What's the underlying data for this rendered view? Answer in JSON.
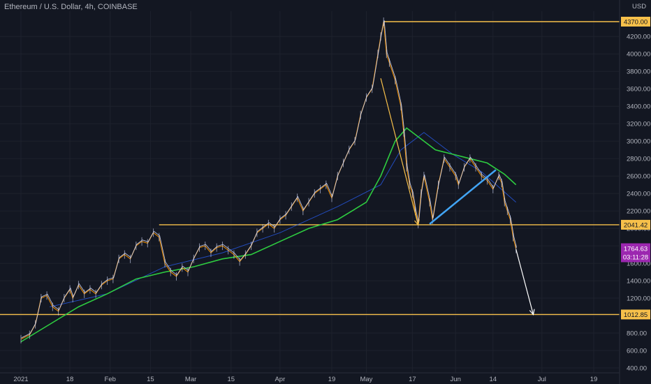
{
  "header": {
    "title": "Ethereum / U.S. Dollar, 4h, COINBASE",
    "currency": "USD"
  },
  "chart_data": {
    "type": "line",
    "title": "Ethereum / U.S. Dollar, 4h, COINBASE",
    "y_unit": "USD",
    "ylim": [
      400,
      4500
    ],
    "y_ticks": [
      400,
      600,
      800,
      1000,
      1200,
      1400,
      1600,
      1800,
      2000,
      2200,
      2400,
      2600,
      2800,
      3000,
      3200,
      3400,
      3600,
      3800,
      4000,
      4200
    ],
    "y_tick_labels": [
      "400.00",
      "600.00",
      "800.00",
      "1000.00",
      "1200.00",
      "1400.00",
      "1600.00",
      "1800.00",
      "2000.00",
      "2200.00",
      "2400.00",
      "2600.00",
      "2800.00",
      "3000.00",
      "3200.00",
      "3400.00",
      "3600.00",
      "3800.00",
      "4000.00",
      "4200.00"
    ],
    "x_ticks": [
      "2021",
      "18",
      "Feb",
      "15",
      "Mar",
      "15",
      "Apr",
      "19",
      "May",
      "17",
      "Jun",
      "14",
      "Jul",
      "19"
    ],
    "x_tick_days": [
      0,
      17,
      31,
      45,
      59,
      73,
      90,
      108,
      120,
      136,
      151,
      164,
      181,
      199
    ],
    "price_points": [
      [
        0,
        730
      ],
      [
        3,
        780
      ],
      [
        5,
        900
      ],
      [
        7,
        1200
      ],
      [
        9,
        1230
      ],
      [
        11,
        1100
      ],
      [
        13,
        1050
      ],
      [
        15,
        1200
      ],
      [
        17,
        1300
      ],
      [
        18,
        1200
      ],
      [
        20,
        1350
      ],
      [
        22,
        1250
      ],
      [
        24,
        1300
      ],
      [
        26,
        1250
      ],
      [
        28,
        1350
      ],
      [
        30,
        1400
      ],
      [
        32,
        1420
      ],
      [
        34,
        1650
      ],
      [
        36,
        1700
      ],
      [
        38,
        1650
      ],
      [
        40,
        1800
      ],
      [
        42,
        1850
      ],
      [
        44,
        1830
      ],
      [
        46,
        1950
      ],
      [
        48,
        1900
      ],
      [
        50,
        1600
      ],
      [
        52,
        1500
      ],
      [
        54,
        1450
      ],
      [
        56,
        1550
      ],
      [
        58,
        1500
      ],
      [
        60,
        1650
      ],
      [
        62,
        1780
      ],
      [
        64,
        1800
      ],
      [
        66,
        1720
      ],
      [
        68,
        1780
      ],
      [
        70,
        1800
      ],
      [
        72,
        1750
      ],
      [
        74,
        1700
      ],
      [
        76,
        1620
      ],
      [
        78,
        1700
      ],
      [
        80,
        1800
      ],
      [
        82,
        1950
      ],
      [
        84,
        2000
      ],
      [
        86,
        2050
      ],
      [
        88,
        2000
      ],
      [
        90,
        2100
      ],
      [
        92,
        2150
      ],
      [
        94,
        2250
      ],
      [
        96,
        2350
      ],
      [
        98,
        2200
      ],
      [
        100,
        2300
      ],
      [
        102,
        2400
      ],
      [
        104,
        2450
      ],
      [
        106,
        2500
      ],
      [
        108,
        2350
      ],
      [
        110,
        2600
      ],
      [
        112,
        2750
      ],
      [
        114,
        2900
      ],
      [
        116,
        3000
      ],
      [
        118,
        3300
      ],
      [
        120,
        3500
      ],
      [
        122,
        3600
      ],
      [
        124,
        4000
      ],
      [
        125,
        4200
      ],
      [
        126,
        4370
      ],
      [
        127,
        4000
      ],
      [
        128,
        3900
      ],
      [
        130,
        3700
      ],
      [
        132,
        3400
      ],
      [
        133,
        3100
      ],
      [
        134,
        2700
      ],
      [
        135,
        2500
      ],
      [
        136,
        2400
      ],
      [
        137,
        2200
      ],
      [
        138,
        2050
      ],
      [
        139,
        2400
      ],
      [
        140,
        2600
      ],
      [
        142,
        2300
      ],
      [
        143,
        2100
      ],
      [
        145,
        2500
      ],
      [
        147,
        2800
      ],
      [
        149,
        2700
      ],
      [
        151,
        2600
      ],
      [
        152,
        2500
      ],
      [
        154,
        2700
      ],
      [
        156,
        2800
      ],
      [
        158,
        2700
      ],
      [
        160,
        2600
      ],
      [
        162,
        2550
      ],
      [
        164,
        2450
      ],
      [
        166,
        2600
      ],
      [
        167,
        2520
      ],
      [
        168,
        2300
      ],
      [
        169,
        2200
      ],
      [
        170,
        2100
      ],
      [
        171,
        1900
      ],
      [
        172,
        1765
      ]
    ],
    "series": [
      {
        "values": [
          [
            10,
            1100
          ],
          [
            30,
            1250
          ],
          [
            50,
            1560
          ],
          [
            70,
            1720
          ],
          [
            90,
            1950
          ],
          [
            110,
            2250
          ],
          [
            125,
            2500
          ],
          [
            132,
            2900
          ],
          [
            140,
            3100
          ],
          [
            150,
            2850
          ],
          [
            160,
            2650
          ],
          [
            172,
            2300
          ]
        ]
      },
      {
        "values": [
          [
            0,
            700
          ],
          [
            10,
            900
          ],
          [
            20,
            1100
          ],
          [
            30,
            1250
          ],
          [
            40,
            1420
          ],
          [
            50,
            1500
          ],
          [
            60,
            1560
          ],
          [
            70,
            1650
          ],
          [
            80,
            1700
          ],
          [
            90,
            1850
          ],
          [
            100,
            2000
          ],
          [
            110,
            2100
          ],
          [
            120,
            2300
          ],
          [
            125,
            2600
          ],
          [
            130,
            3000
          ],
          [
            134,
            3150
          ],
          [
            138,
            3050
          ],
          [
            144,
            2900
          ],
          [
            150,
            2850
          ],
          [
            156,
            2800
          ],
          [
            162,
            2750
          ],
          [
            168,
            2620
          ],
          [
            172,
            2500
          ]
        ]
      }
    ],
    "horizontal_levels": [
      {
        "value": 4370,
        "label": "4370.00"
      },
      {
        "value": 2041.42,
        "label": "2041.42"
      },
      {
        "value": 1012.85,
        "label": "1012.85"
      }
    ],
    "current_price": {
      "value": 1764.63,
      "label": "1764.63",
      "countdown": "03:11:28"
    },
    "annotations": [
      {
        "kind": "arrow",
        "from": [
          125,
          3720
        ],
        "to": [
          138,
          2040
        ],
        "color": "#f7c04a"
      },
      {
        "kind": "line",
        "from": [
          142,
          2050
        ],
        "to": [
          165,
          2670
        ],
        "color": "#42a5f5"
      },
      {
        "kind": "arrow",
        "from": [
          172,
          1760
        ],
        "to": [
          178,
          1012
        ],
        "color": "#ffffff"
      }
    ],
    "grid": true,
    "colors": {
      "background": "#131722",
      "grid": "#1e222d",
      "price": "#d6deff",
      "ma_fast": "#ff9800",
      "ma_mid": "#2962ff",
      "ma_slow": "#2ecc40",
      "level": "#f7c04a",
      "current_badge": "#9c27b0",
      "level_badge": "#f7c04a"
    }
  }
}
